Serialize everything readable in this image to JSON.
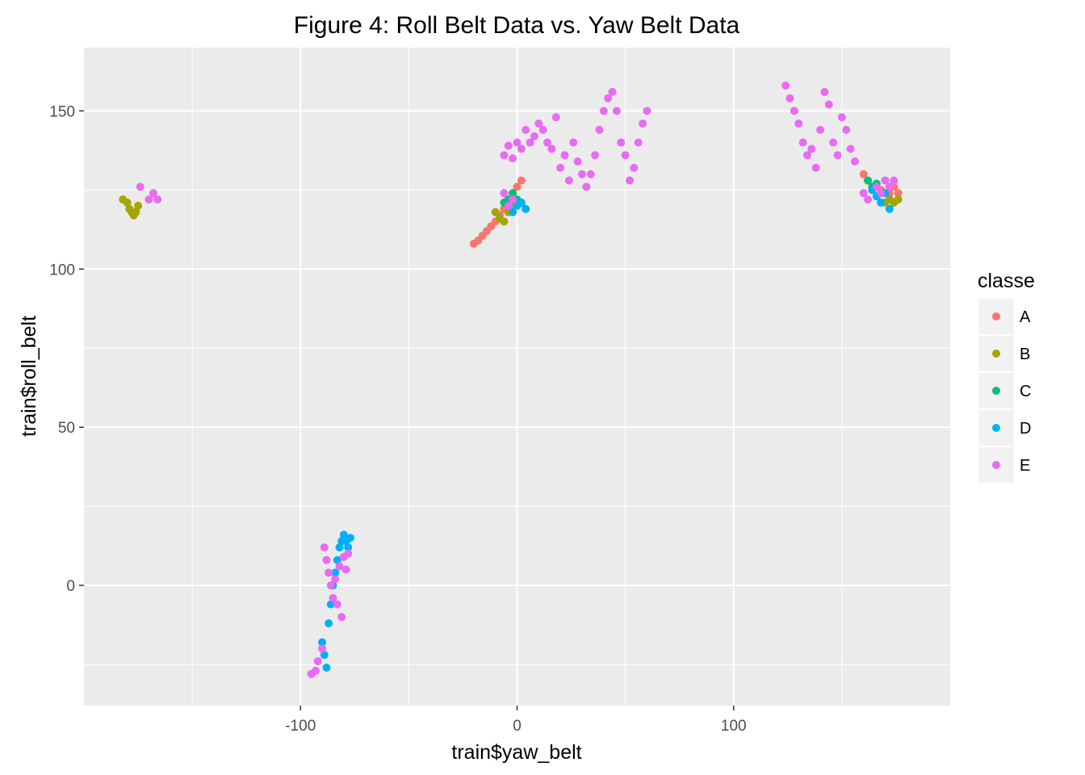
{
  "chart_data": {
    "type": "scatter",
    "title": "Figure 4: Roll Belt Data vs. Yaw Belt Data",
    "xlabel": "train$yaw_belt",
    "ylabel": "train$roll_belt",
    "xlim": [
      -200,
      200
    ],
    "ylim": [
      -38,
      170
    ],
    "x_major_ticks": [
      -100,
      0,
      100
    ],
    "x_minor_ticks": [
      -150,
      -50,
      50,
      150
    ],
    "y_major_ticks": [
      0,
      50,
      100,
      150
    ],
    "y_minor_ticks": [
      -25,
      25,
      75,
      125
    ],
    "grid": true,
    "legend": {
      "title": "classe",
      "position": "right"
    },
    "colors": {
      "A": "#F8766D",
      "B": "#A3A500",
      "C": "#00BF7D",
      "D": "#00B0F6",
      "E": "#E76BF3"
    },
    "series": [
      {
        "name": "A",
        "points": [
          [
            -20,
            108
          ],
          [
            -18,
            109
          ],
          [
            -16,
            110.5
          ],
          [
            -14,
            112
          ],
          [
            -12,
            113.5
          ],
          [
            -10,
            115
          ],
          [
            -8,
            117
          ],
          [
            -6,
            119
          ],
          [
            -4,
            121
          ],
          [
            -2,
            124
          ],
          [
            0,
            126
          ],
          [
            2,
            128
          ],
          [
            160,
            130
          ],
          [
            162,
            128
          ],
          [
            166,
            126
          ],
          [
            168,
            125
          ],
          [
            172,
            124
          ],
          [
            174,
            126
          ],
          [
            176,
            124
          ]
        ]
      },
      {
        "name": "B",
        "points": [
          [
            -182,
            122
          ],
          [
            -180,
            121
          ],
          [
            -179,
            119
          ],
          [
            -178,
            118
          ],
          [
            -177,
            117
          ],
          [
            -176,
            118
          ],
          [
            -175,
            120
          ],
          [
            -10,
            118
          ],
          [
            -8,
            116
          ],
          [
            -6,
            115
          ],
          [
            -4,
            118
          ],
          [
            -2,
            120
          ],
          [
            170,
            121
          ],
          [
            172,
            122
          ],
          [
            174,
            121
          ],
          [
            176,
            122
          ]
        ]
      },
      {
        "name": "C",
        "points": [
          [
            -6,
            121
          ],
          [
            -4,
            122
          ],
          [
            -2,
            124
          ],
          [
            0,
            122
          ],
          [
            162,
            128
          ],
          [
            164,
            126
          ],
          [
            166,
            127
          ],
          [
            170,
            128
          ]
        ]
      },
      {
        "name": "D",
        "points": [
          [
            -90,
            -18
          ],
          [
            -89,
            -22
          ],
          [
            -88,
            -26
          ],
          [
            -87,
            -12
          ],
          [
            -86,
            -6
          ],
          [
            -85,
            0
          ],
          [
            -84,
            4
          ],
          [
            -83,
            8
          ],
          [
            -82,
            12
          ],
          [
            -81,
            14
          ],
          [
            -80,
            16
          ],
          [
            -79,
            14
          ],
          [
            -78,
            12
          ],
          [
            -77,
            15
          ],
          [
            -2,
            118
          ],
          [
            0,
            120
          ],
          [
            2,
            121
          ],
          [
            4,
            119
          ],
          [
            164,
            125
          ],
          [
            166,
            123
          ],
          [
            168,
            121
          ],
          [
            170,
            124
          ],
          [
            172,
            119
          ]
        ]
      },
      {
        "name": "E",
        "points": [
          [
            -174,
            126
          ],
          [
            -170,
            122
          ],
          [
            -168,
            124
          ],
          [
            -166,
            122
          ],
          [
            -95,
            -28
          ],
          [
            -93,
            -27
          ],
          [
            -92,
            -24
          ],
          [
            -90,
            -20
          ],
          [
            -89,
            12
          ],
          [
            -88,
            8
          ],
          [
            -87,
            4
          ],
          [
            -86,
            0
          ],
          [
            -85,
            -4
          ],
          [
            -84,
            2
          ],
          [
            -83,
            -6
          ],
          [
            -82,
            6
          ],
          [
            -81,
            -10
          ],
          [
            -80,
            9
          ],
          [
            -79,
            5
          ],
          [
            -78,
            10
          ],
          [
            -6,
            124
          ],
          [
            -4,
            120
          ],
          [
            -2,
            122
          ],
          [
            -6,
            136
          ],
          [
            -4,
            139
          ],
          [
            -2,
            135
          ],
          [
            0,
            140
          ],
          [
            2,
            138
          ],
          [
            4,
            144
          ],
          [
            6,
            140
          ],
          [
            8,
            142
          ],
          [
            10,
            146
          ],
          [
            12,
            144
          ],
          [
            14,
            140
          ],
          [
            16,
            138
          ],
          [
            18,
            148
          ],
          [
            20,
            132
          ],
          [
            22,
            136
          ],
          [
            24,
            128
          ],
          [
            26,
            140
          ],
          [
            28,
            134
          ],
          [
            30,
            130
          ],
          [
            32,
            126
          ],
          [
            34,
            130
          ],
          [
            36,
            136
          ],
          [
            38,
            144
          ],
          [
            40,
            150
          ],
          [
            42,
            154
          ],
          [
            44,
            156
          ],
          [
            46,
            150
          ],
          [
            48,
            140
          ],
          [
            50,
            136
          ],
          [
            52,
            128
          ],
          [
            54,
            132
          ],
          [
            56,
            140
          ],
          [
            58,
            146
          ],
          [
            60,
            150
          ],
          [
            124,
            158
          ],
          [
            126,
            154
          ],
          [
            128,
            150
          ],
          [
            130,
            146
          ],
          [
            132,
            140
          ],
          [
            134,
            136
          ],
          [
            136,
            138
          ],
          [
            138,
            132
          ],
          [
            140,
            144
          ],
          [
            142,
            156
          ],
          [
            144,
            152
          ],
          [
            146,
            140
          ],
          [
            148,
            136
          ],
          [
            150,
            148
          ],
          [
            152,
            144
          ],
          [
            154,
            138
          ],
          [
            156,
            134
          ],
          [
            160,
            124
          ],
          [
            162,
            122
          ],
          [
            166,
            126
          ],
          [
            168,
            124
          ],
          [
            170,
            128
          ],
          [
            172,
            126
          ],
          [
            174,
            128
          ]
        ]
      }
    ]
  }
}
